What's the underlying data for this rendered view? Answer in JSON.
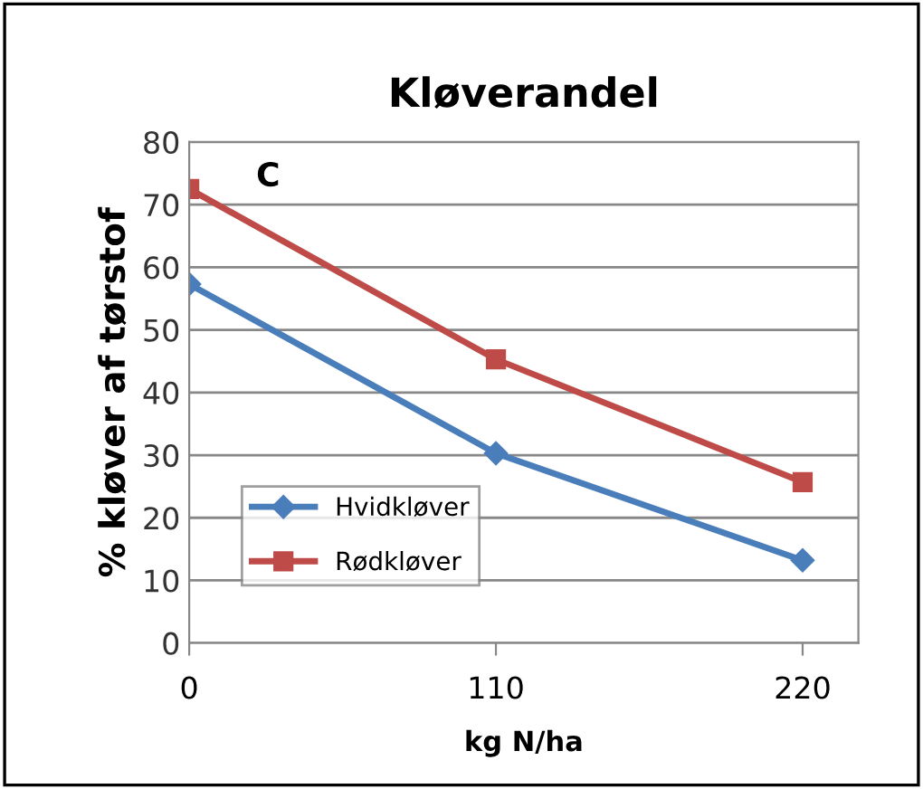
{
  "chart_data": {
    "type": "line",
    "title": "Kløverandel",
    "xlabel": "kg N/ha",
    "ylabel": "% kløver af tørstof",
    "x": [
      0,
      110,
      220
    ],
    "series": [
      {
        "name": "Hvidkløver",
        "color": "#4a7ebb",
        "values": [
          57.3,
          30.3,
          13.2
        ],
        "marker": "diamond"
      },
      {
        "name": "Rødkløver",
        "color": "#be4b48",
        "values": [
          72.5,
          45.3,
          25.7
        ],
        "marker": "square"
      }
    ],
    "xlim": [
      0,
      240
    ],
    "xticks": [
      0,
      110,
      220
    ],
    "ylim": [
      0,
      80
    ],
    "yticks": [
      0,
      10,
      20,
      30,
      40,
      50,
      60,
      70,
      80
    ],
    "grid": "y",
    "legend": "bottom left",
    "annotations": [
      "C"
    ]
  }
}
